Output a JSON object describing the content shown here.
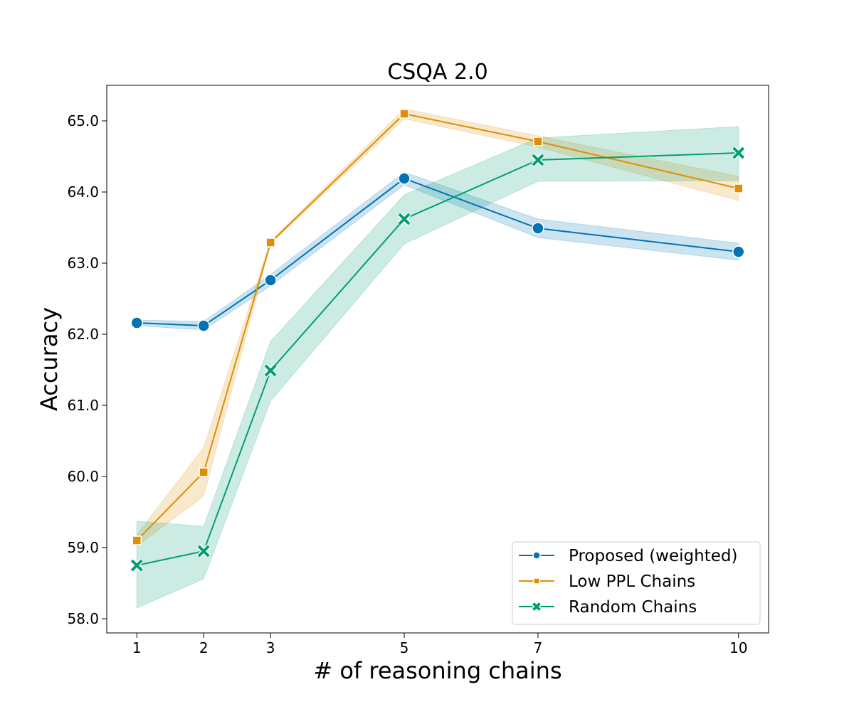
{
  "chart_data": {
    "type": "line",
    "title": "CSQA 2.0",
    "xlabel": "# of reasoning chains",
    "ylabel": "Accuracy",
    "x": [
      1,
      2,
      3,
      5,
      7,
      10
    ],
    "xlim": [
      0.55,
      10.45
    ],
    "ylim": [
      57.8,
      65.5
    ],
    "x_ticks": [
      1,
      2,
      3,
      5,
      7,
      10
    ],
    "x_tick_labels": [
      "1",
      "2",
      "3",
      "5",
      "7",
      "10"
    ],
    "y_ticks": [
      58,
      59,
      60,
      61,
      62,
      63,
      64,
      65
    ],
    "y_tick_labels": [
      "58.0",
      "59.0",
      "60.0",
      "61.0",
      "62.0",
      "63.0",
      "64.0",
      "65.0"
    ],
    "grid": false,
    "legend_position": "bottom-right",
    "series": [
      {
        "name": "Proposed (weighted)",
        "color": "#0173b2",
        "marker": "circle",
        "values": [
          62.16,
          62.12,
          62.76,
          64.19,
          63.49,
          63.16
        ],
        "lower": [
          62.12,
          62.06,
          62.68,
          64.1,
          63.36,
          63.04
        ],
        "upper": [
          62.2,
          62.18,
          62.84,
          64.28,
          63.62,
          63.28
        ]
      },
      {
        "name": "Low PPL Chains",
        "color": "#de8f05",
        "marker": "square",
        "values": [
          59.1,
          60.06,
          63.29,
          65.1,
          64.71,
          64.05
        ],
        "lower": [
          59.02,
          59.72,
          63.27,
          65.03,
          64.63,
          63.88
        ],
        "upper": [
          59.18,
          60.41,
          63.31,
          65.17,
          64.79,
          64.22
        ]
      },
      {
        "name": "Random Chains",
        "color": "#029e73",
        "marker": "x",
        "values": [
          58.75,
          58.95,
          61.49,
          63.62,
          64.45,
          64.55
        ],
        "lower": [
          58.15,
          58.56,
          61.06,
          63.27,
          64.15,
          64.16
        ],
        "upper": [
          59.37,
          59.3,
          61.9,
          63.96,
          64.76,
          64.92
        ]
      }
    ]
  }
}
